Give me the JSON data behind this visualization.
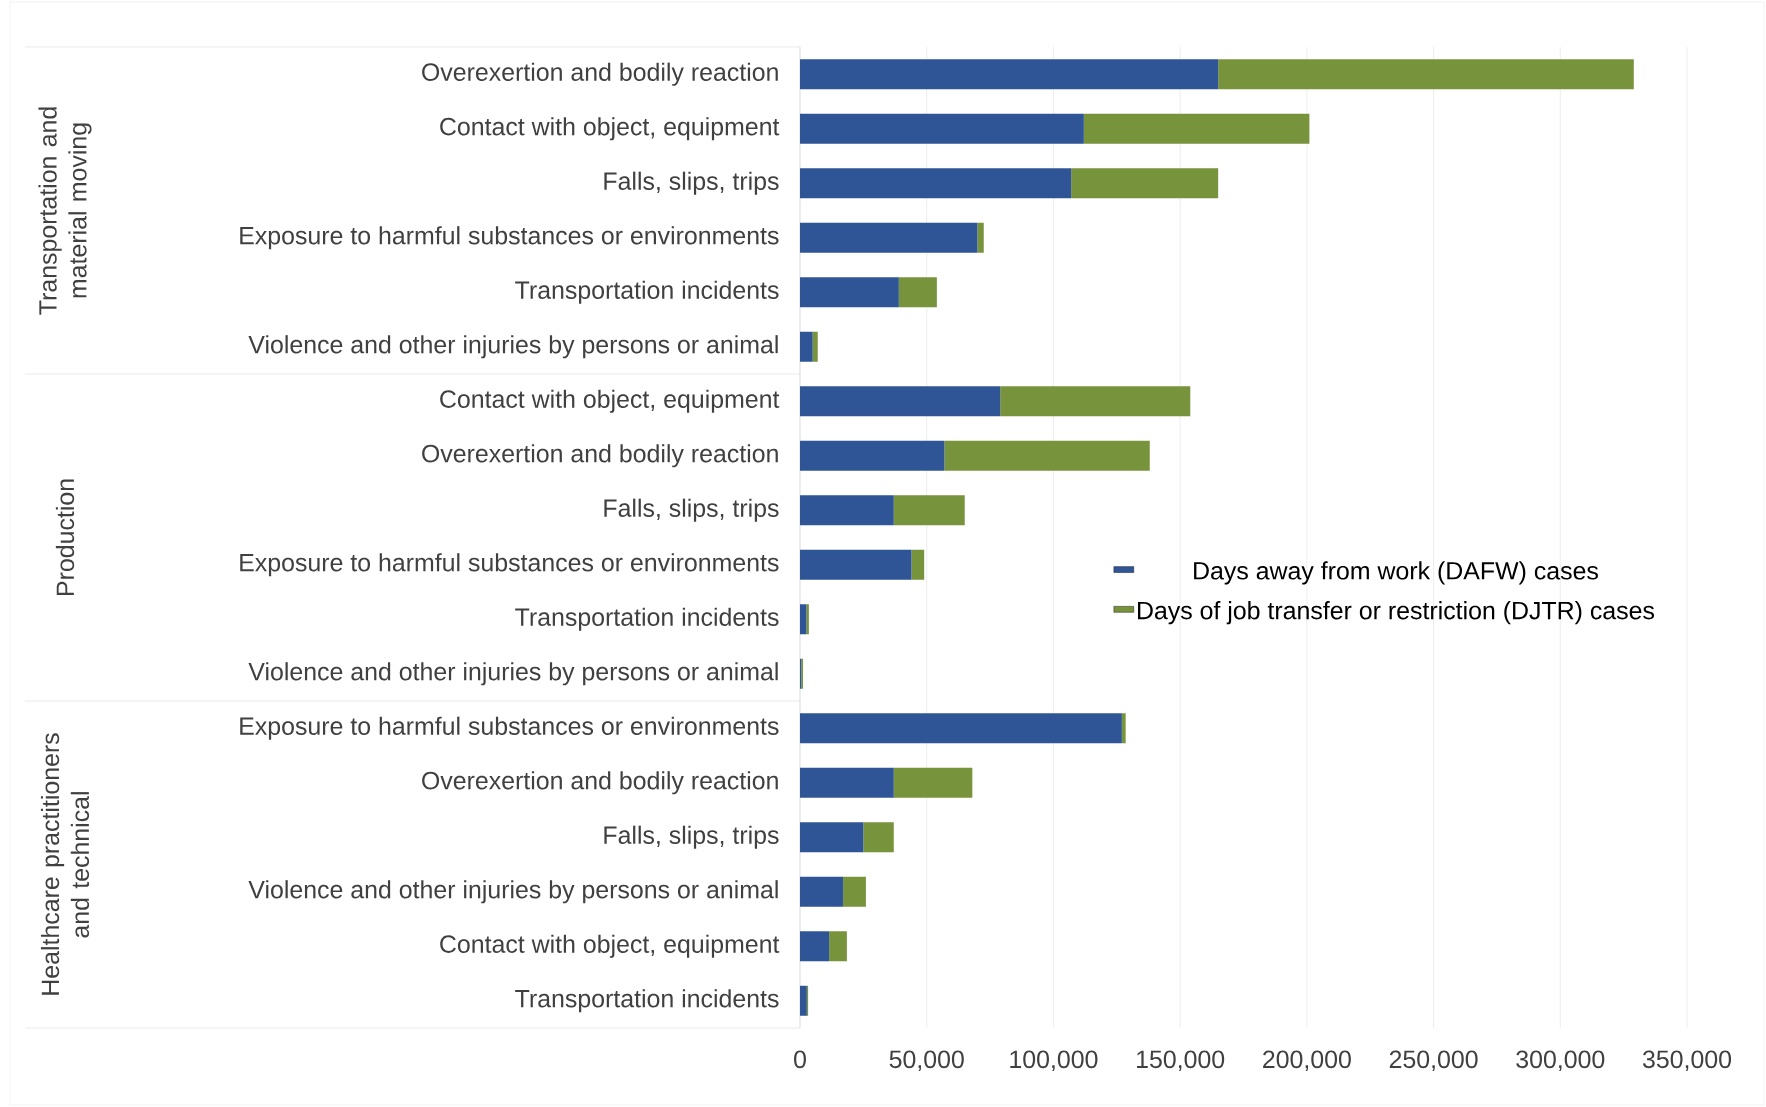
{
  "chart_data": {
    "type": "bar",
    "orientation": "horizontal",
    "stacked": true,
    "categories": [
      "Overexertion and bodily reaction",
      "Contact with object, equipment",
      "Falls, slips, trips",
      "Exposure to harmful substances or environments",
      "Transportation incidents",
      "Violence and other injuries by persons or animal",
      "Contact with object, equipment",
      "Overexertion and bodily reaction",
      "Falls, slips, trips",
      "Exposure to harmful substances or environments",
      "Transportation incidents",
      "Violence and other injuries by persons or animal",
      "Exposure to harmful substances or environments",
      "Overexertion and bodily reaction",
      "Falls, slips, trips",
      "Violence and other injuries by persons or animal",
      "Contact with object, equipment",
      "Transportation incidents"
    ],
    "series": [
      {
        "name": "Days away from work (DAFW) cases",
        "color": "#2f5597",
        "values": [
          165000,
          112000,
          107000,
          70000,
          39000,
          5000,
          79000,
          57000,
          37000,
          44000,
          2500,
          500,
          127000,
          37000,
          25000,
          17000,
          11500,
          2700
        ]
      },
      {
        "name": "Days of job transfer or restriction (DJTR) cases",
        "color": "#77933c",
        "values": [
          164000,
          89000,
          58000,
          2500,
          15000,
          2000,
          75000,
          81000,
          28000,
          5000,
          1000,
          700,
          1500,
          31000,
          12000,
          9000,
          7000,
          500
        ]
      }
    ],
    "xlim": [
      0,
      350000
    ],
    "xticks": [
      0,
      {
        "value": 50000,
        "label": "50,000"
      },
      {
        "value": 100000,
        "label": "100,000"
      },
      {
        "value": 150000,
        "label": "150,000"
      },
      {
        "value": 200000,
        "label": "200,000"
      },
      {
        "value": 250000,
        "label": "250,000"
      },
      {
        "value": 300000,
        "label": "300,000"
      },
      {
        "value": 350000,
        "label": "350,000"
      }
    ],
    "grid": "x",
    "legend": "right",
    "annotations": [
      "Transportation and material moving",
      "Production",
      "Healthcare practitioners and technical"
    ]
  }
}
